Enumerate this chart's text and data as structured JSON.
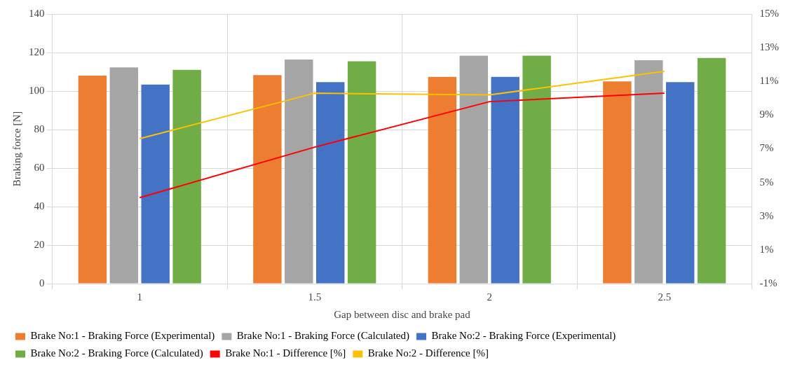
{
  "chart_data": {
    "type": "bar",
    "xlabel": "Gap between disc and brake pad",
    "ylabel": "Braking force [N]",
    "categories": [
      "1",
      "1.5",
      "2",
      "2.5"
    ],
    "series": [
      {
        "name": "Brake No:1 - Braking Force (Experimental)",
        "color": "#ed7d31",
        "values": [
          108,
          108.3,
          107.4,
          105
        ]
      },
      {
        "name": "Brake No:1 - Braking Force (Calculated)",
        "color": "#a5a5a5",
        "values": [
          112.3,
          116.4,
          118.4,
          116
        ]
      },
      {
        "name": "Brake No:2 - Braking Force (Experimental)",
        "color": "#4472c4",
        "values": [
          103.4,
          104.6,
          107.4,
          104.6
        ]
      },
      {
        "name": "Brake No:2 - Braking Force (Calculated)",
        "color": "#70ad47",
        "values": [
          111,
          115.5,
          118.4,
          117.2
        ]
      },
      {
        "name": "Brake No:1 - Difference [%]",
        "type": "line",
        "axis": "y2",
        "color": "#ff0000",
        "values": [
          4.1,
          7.1,
          9.8,
          10.3
        ]
      },
      {
        "name": "Brake No:2 - Difference [%]",
        "type": "line",
        "axis": "y2",
        "color": "#ffc000",
        "values": [
          7.6,
          10.3,
          10.2,
          11.6
        ]
      }
    ],
    "ylim": [
      0,
      140
    ],
    "yticks": [
      0,
      20,
      40,
      60,
      80,
      100,
      120,
      140
    ],
    "y2lim": [
      -1,
      15
    ],
    "y2ticks": [
      {
        "value": -1,
        "label": "-1%"
      },
      {
        "value": 1,
        "label": "1%"
      },
      {
        "value": 3,
        "label": "3%"
      },
      {
        "value": 5,
        "label": "5%"
      },
      {
        "value": 7,
        "label": "7%"
      },
      {
        "value": 9,
        "label": "9%"
      },
      {
        "value": 11,
        "label": "11%"
      },
      {
        "value": 13,
        "label": "13%"
      },
      {
        "value": 15,
        "label": "15%"
      }
    ],
    "grid": true,
    "legend": "bottom",
    "marker": "none"
  }
}
